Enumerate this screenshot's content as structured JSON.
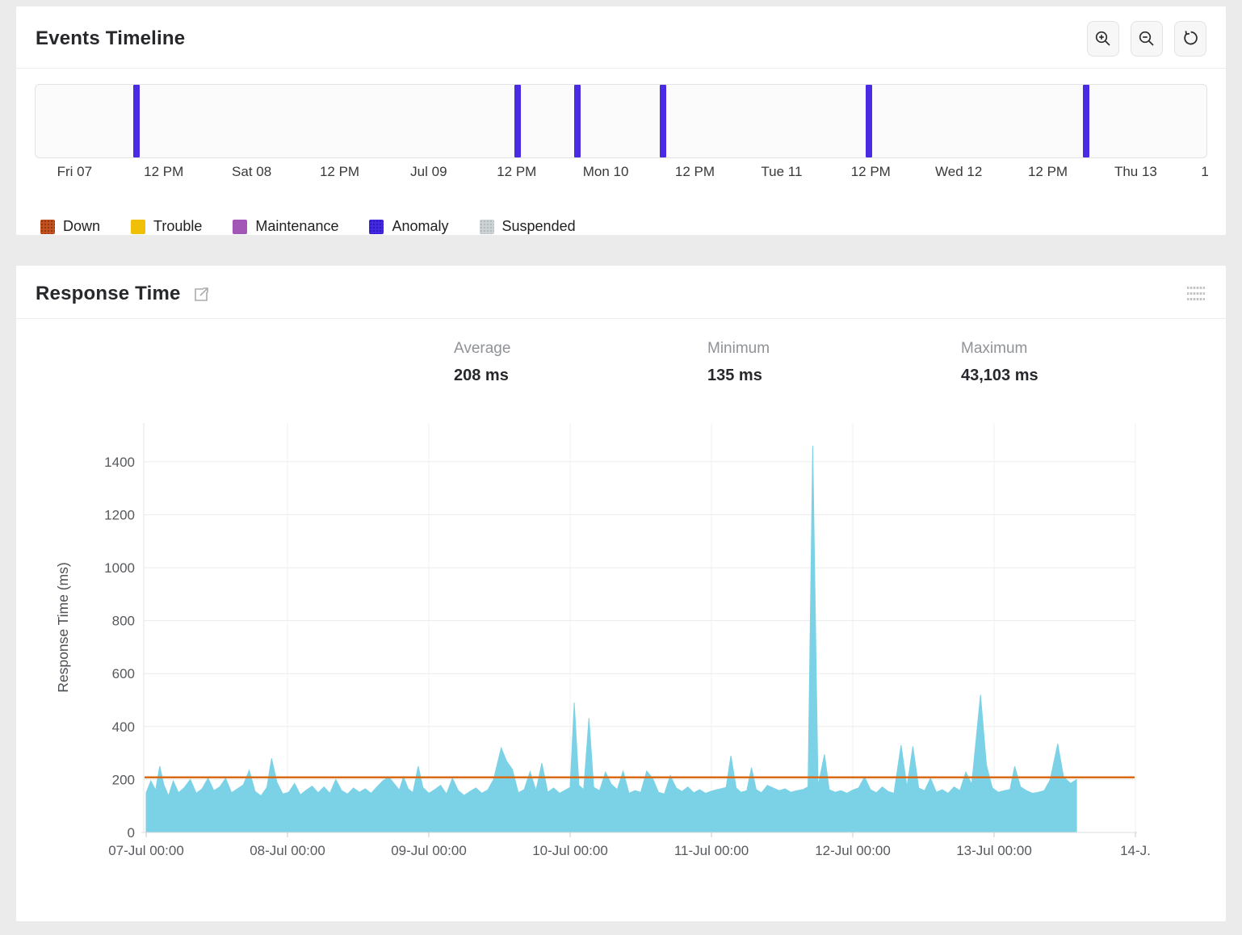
{
  "events_timeline": {
    "title": "Events Timeline",
    "toolbar_icons": [
      "zoom-in-icon",
      "zoom-out-icon",
      "reset-zoom-icon"
    ],
    "legend": [
      {
        "label": "Down",
        "color": "#c55120",
        "dot_color": "#8a3810",
        "textured": true
      },
      {
        "label": "Trouble",
        "color": "#f0c009",
        "textured": false
      },
      {
        "label": "Maintenance",
        "color": "#a257b7",
        "textured": false
      },
      {
        "label": "Anomaly",
        "color": "#4328e2",
        "dot_color": "#2d18b6",
        "textured": true
      },
      {
        "label": "Suspended",
        "color": "#ccd2d5",
        "dot_color": "#b2b9bd",
        "textured": true
      }
    ]
  },
  "response_time": {
    "title": "Response Time",
    "header_icons": [
      "external-link-icon",
      "chart-menu-icon"
    ],
    "stats": [
      {
        "label": "Average",
        "value": "208 ms"
      },
      {
        "label": "Minimum",
        "value": "135 ms"
      },
      {
        "label": "Maximum",
        "value": "43,103 ms"
      }
    ]
  },
  "chart_data": [
    {
      "id": "events-timeline",
      "type": "timeline",
      "title": "Events Timeline",
      "bar_color": "#4b2ae4",
      "axis_ticks": [
        {
          "label": "Fri 07",
          "pct": 3.4
        },
        {
          "label": "12 PM",
          "pct": 11.0
        },
        {
          "label": "Sat 08",
          "pct": 18.5
        },
        {
          "label": "12 PM",
          "pct": 26.0
        },
        {
          "label": "Jul 09",
          "pct": 33.6
        },
        {
          "label": "12 PM",
          "pct": 41.1
        },
        {
          "label": "Mon 10",
          "pct": 48.7
        },
        {
          "label": "12 PM",
          "pct": 56.3
        },
        {
          "label": "Tue 11",
          "pct": 63.7
        },
        {
          "label": "12 PM",
          "pct": 71.3
        },
        {
          "label": "Wed 12",
          "pct": 78.8
        },
        {
          "label": "12 PM",
          "pct": 86.4
        },
        {
          "label": "Thu 13",
          "pct": 93.9
        },
        {
          "label": "1",
          "pct": 99.8
        }
      ],
      "events": [
        {
          "type": "Anomaly",
          "pct": 8.6
        },
        {
          "type": "Anomaly",
          "pct": 41.2
        },
        {
          "type": "Anomaly",
          "pct": 46.3
        },
        {
          "type": "Anomaly",
          "pct": 53.6
        },
        {
          "type": "Anomaly",
          "pct": 71.2
        },
        {
          "type": "Anomaly",
          "pct": 89.7
        }
      ]
    },
    {
      "id": "response-time",
      "type": "area",
      "title": "Response Time",
      "ylabel": "Response Time (ms)",
      "grid": true,
      "legend_position": "none",
      "yticks": [
        0,
        200,
        400,
        600,
        800,
        1000,
        1200,
        1400
      ],
      "ylim": [
        0,
        1546
      ],
      "xlim_hours": [
        0,
        168
      ],
      "xticks": [
        {
          "label": "07-Jul 00:00",
          "hour": 0
        },
        {
          "label": "08-Jul 00:00",
          "hour": 24
        },
        {
          "label": "09-Jul 00:00",
          "hour": 48
        },
        {
          "label": "10-Jul 00:00",
          "hour": 72
        },
        {
          "label": "11-Jul 00:00",
          "hour": 96
        },
        {
          "label": "12-Jul 00:00",
          "hour": 120
        },
        {
          "label": "13-Jul 00:00",
          "hour": 144
        },
        {
          "label": "14-J.",
          "hour": 168
        }
      ],
      "average_line": {
        "value": 208,
        "color": "#d86b17"
      },
      "stats": {
        "average_ms": 208,
        "minimum_ms": 135,
        "maximum_ms": 43103
      },
      "series": [
        {
          "name": "Response Time",
          "color": "#7bd2e6",
          "points": [
            [
              0,
              150
            ],
            [
              0.8,
              195
            ],
            [
              1.6,
              160
            ],
            [
              2.3,
              250
            ],
            [
              3,
              180
            ],
            [
              3.8,
              138
            ],
            [
              4.6,
              195
            ],
            [
              5.5,
              150
            ],
            [
              6.5,
              170
            ],
            [
              7.5,
              200
            ],
            [
              8.5,
              148
            ],
            [
              9.5,
              165
            ],
            [
              10.5,
              205
            ],
            [
              11.5,
              158
            ],
            [
              12.5,
              172
            ],
            [
              13.5,
              205
            ],
            [
              14.5,
              150
            ],
            [
              15.5,
              165
            ],
            [
              16.5,
              180
            ],
            [
              17.5,
              235
            ],
            [
              18.5,
              155
            ],
            [
              19.5,
              138
            ],
            [
              20.5,
              170
            ],
            [
              21.3,
              280
            ],
            [
              22.2,
              190
            ],
            [
              23.2,
              145
            ],
            [
              24.2,
              152
            ],
            [
              25.2,
              185
            ],
            [
              26.2,
              142
            ],
            [
              27.2,
              160
            ],
            [
              28.2,
              175
            ],
            [
              29.2,
              150
            ],
            [
              30.2,
              172
            ],
            [
              31.2,
              148
            ],
            [
              32.2,
              200
            ],
            [
              33.2,
              158
            ],
            [
              34.2,
              145
            ],
            [
              35.2,
              168
            ],
            [
              36.2,
              152
            ],
            [
              37.2,
              165
            ],
            [
              38.2,
              148
            ],
            [
              39.2,
              172
            ],
            [
              40.2,
              195
            ],
            [
              41.2,
              210
            ],
            [
              42.2,
              182
            ],
            [
              43,
              160
            ],
            [
              43.7,
              210
            ],
            [
              44.5,
              165
            ],
            [
              45.3,
              150
            ],
            [
              46.2,
              250
            ],
            [
              47,
              170
            ],
            [
              48,
              148
            ],
            [
              49,
              162
            ],
            [
              50,
              178
            ],
            [
              51,
              145
            ],
            [
              52,
              205
            ],
            [
              53,
              158
            ],
            [
              54,
              140
            ],
            [
              55,
              155
            ],
            [
              56,
              168
            ],
            [
              57,
              148
            ],
            [
              58,
              160
            ],
            [
              59,
              200
            ],
            [
              60.3,
              320
            ],
            [
              61.2,
              270
            ],
            [
              62.2,
              238
            ],
            [
              63.2,
              150
            ],
            [
              64.2,
              162
            ],
            [
              65.2,
              230
            ],
            [
              66.2,
              158
            ],
            [
              67.2,
              262
            ],
            [
              68.2,
              152
            ],
            [
              69.2,
              168
            ],
            [
              70.2,
              148
            ],
            [
              71.2,
              160
            ],
            [
              72,
              170
            ],
            [
              72.7,
              490
            ],
            [
              73.5,
              178
            ],
            [
              74.3,
              162
            ],
            [
              75.2,
              432
            ],
            [
              76,
              170
            ],
            [
              77,
              158
            ],
            [
              78,
              228
            ],
            [
              79,
              182
            ],
            [
              80,
              162
            ],
            [
              81,
              232
            ],
            [
              82,
              148
            ],
            [
              83,
              158
            ],
            [
              84,
              152
            ],
            [
              85,
              232
            ],
            [
              86,
              205
            ],
            [
              87,
              152
            ],
            [
              88,
              145
            ],
            [
              89,
              215
            ],
            [
              90,
              168
            ],
            [
              91,
              155
            ],
            [
              92,
              172
            ],
            [
              93,
              150
            ],
            [
              94,
              162
            ],
            [
              95,
              148
            ],
            [
              96,
              156
            ],
            [
              97,
              162
            ],
            [
              98.5,
              170
            ],
            [
              99.3,
              290
            ],
            [
              100.2,
              168
            ],
            [
              101,
              152
            ],
            [
              102,
              158
            ],
            [
              102.8,
              245
            ],
            [
              103.6,
              162
            ],
            [
              104.5,
              150
            ],
            [
              105.5,
              178
            ],
            [
              106.5,
              168
            ],
            [
              107.5,
              158
            ],
            [
              108.5,
              165
            ],
            [
              109.5,
              152
            ],
            [
              110.5,
              158
            ],
            [
              111.5,
              162
            ],
            [
              112.4,
              172
            ],
            [
              113.2,
              1460
            ],
            [
              114.1,
              175
            ],
            [
              115.2,
              295
            ],
            [
              116,
              162
            ],
            [
              117,
              152
            ],
            [
              118,
              158
            ],
            [
              119,
              148
            ],
            [
              120,
              160
            ],
            [
              121,
              168
            ],
            [
              122,
              210
            ],
            [
              123,
              162
            ],
            [
              124,
              150
            ],
            [
              125,
              172
            ],
            [
              126,
              155
            ],
            [
              127,
              148
            ],
            [
              128.2,
              330
            ],
            [
              129.2,
              172
            ],
            [
              130.2,
              325
            ],
            [
              131.2,
              168
            ],
            [
              132.2,
              158
            ],
            [
              133.2,
              205
            ],
            [
              134.2,
              152
            ],
            [
              135.2,
              162
            ],
            [
              136.2,
              148
            ],
            [
              137.2,
              172
            ],
            [
              138.2,
              158
            ],
            [
              139.2,
              228
            ],
            [
              140.2,
              182
            ],
            [
              141.7,
              520
            ],
            [
              142.7,
              255
            ],
            [
              143.7,
              168
            ],
            [
              144.7,
              152
            ],
            [
              145.7,
              158
            ],
            [
              146.7,
              162
            ],
            [
              147.5,
              250
            ],
            [
              148.5,
              172
            ],
            [
              149.5,
              158
            ],
            [
              150.5,
              148
            ],
            [
              151.5,
              152
            ],
            [
              152.5,
              158
            ],
            [
              153.5,
              198
            ],
            [
              154.8,
              335
            ],
            [
              155.8,
              210
            ],
            [
              157,
              185
            ],
            [
              158,
              200
            ]
          ]
        }
      ]
    }
  ]
}
